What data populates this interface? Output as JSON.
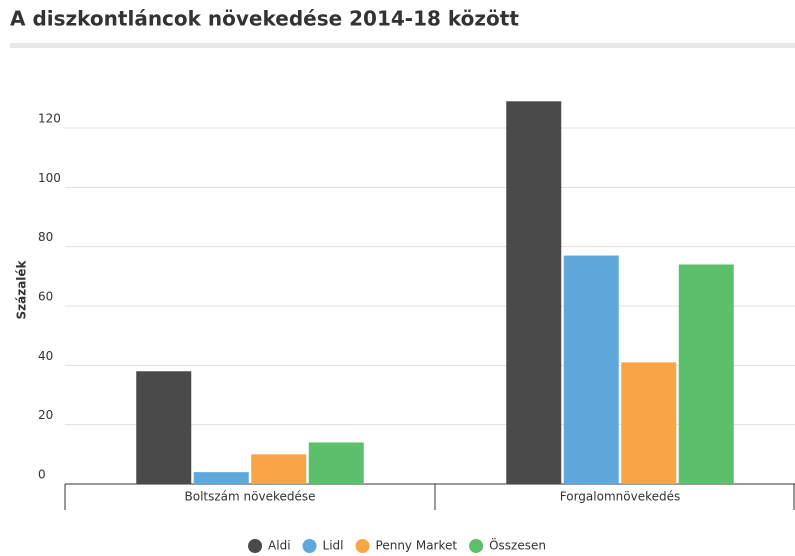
{
  "chart_data": {
    "type": "bar",
    "title": "A diszkontláncok növekedése 2014-18 között",
    "ylabel": "Százalék",
    "categories": [
      "Boltszám növekedése",
      "Forgalomnövekedés"
    ],
    "series": [
      {
        "name": "Aldi",
        "color": "#4a4a4a",
        "values": [
          38,
          129
        ]
      },
      {
        "name": "Lidl",
        "color": "#5fa8dc",
        "values": [
          4,
          77
        ]
      },
      {
        "name": "Penny Market",
        "color": "#f7a545",
        "values": [
          10,
          41
        ]
      },
      {
        "name": "Összesen",
        "color": "#5cbf6b",
        "values": [
          14,
          74
        ]
      }
    ],
    "ylim": [
      0,
      135
    ],
    "yticks": [
      0,
      20,
      40,
      60,
      80,
      100,
      120
    ],
    "grid": true,
    "legend": "bottom"
  }
}
